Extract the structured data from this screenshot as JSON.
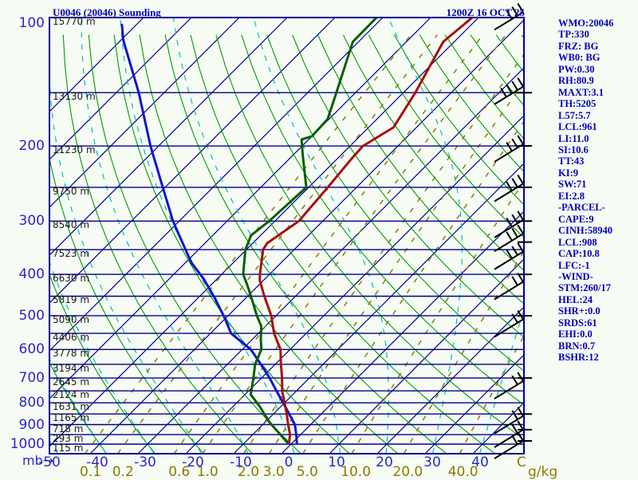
{
  "title": "U0046 (20046) Sounding",
  "datetime": "1200Z 16 OCT 25",
  "panel": {
    "lines": [
      "WMO:20046",
      "TP:330",
      "FRZ: BG",
      "WB0: BG",
      "PW:0.30",
      "RH:80.9",
      "MAXT:3.1",
      "TH:5205",
      "L57:5.7",
      "LCL:961",
      "LI:11.0",
      "SI:10.6",
      "TT:43",
      "KI:9",
      "SW:71",
      "EI:2.8",
      "-PARCEL-",
      "CAPE:9",
      "CINH:58940",
      "LCL:908",
      "CAP:10.8",
      "LFC:-1",
      "-WIND-",
      "STM:260/17",
      "HEL:24",
      "SHR+:0.0",
      "SRDS:61",
      "EHI:0.0",
      "BRN:0.7",
      "BSHR:12"
    ]
  },
  "axes": {
    "pressure_unit": "mb",
    "pressure_arrow": "→",
    "pressure_labels": [
      100,
      200,
      300,
      400,
      500,
      600,
      700,
      800,
      900,
      1000
    ],
    "temp_labels": [
      -50,
      -40,
      -30,
      -20,
      -10,
      0,
      10,
      20,
      30,
      40
    ],
    "temp_unit": "C",
    "mixing_labels": [
      "0.1",
      "0.2",
      "0.6",
      "1.0",
      "2.0",
      "3.0",
      "5.0",
      "10.0",
      "20.0",
      "40.0"
    ],
    "mixing_unit": "g/kg",
    "height_labels": [
      {
        "p": 100,
        "text": "15770 m"
      },
      {
        "p": 150,
        "text": "13130 m"
      },
      {
        "p": 200,
        "text": "11230 m"
      },
      {
        "p": 250,
        "text": "9750 m"
      },
      {
        "p": 300,
        "text": "8540 m"
      },
      {
        "p": 350,
        "text": "7523 m"
      },
      {
        "p": 400,
        "text": "6630 m"
      },
      {
        "p": 450,
        "text": "5819 m"
      },
      {
        "p": 500,
        "text": "5090 m"
      },
      {
        "p": 550,
        "text": "4406 m"
      },
      {
        "p": 600,
        "text": "3778 m"
      },
      {
        "p": 650,
        "text": "3194 m"
      },
      {
        "p": 700,
        "text": "2645 m"
      },
      {
        "p": 750,
        "text": "2124 m"
      },
      {
        "p": 800,
        "text": "1631 m"
      },
      {
        "p": 850,
        "text": "1165 m"
      },
      {
        "p": 900,
        "text": "718 m"
      },
      {
        "p": 950,
        "text": "293 m"
      },
      {
        "p": 1000,
        "text": "115 m"
      }
    ]
  },
  "chart_data": {
    "type": "skew-t log-p sounding",
    "pressure_range_mb": [
      100,
      1050
    ],
    "temp_scale_c_at_bottom": [
      -50,
      48
    ],
    "skew": "45deg",
    "isobars_mb": [
      100,
      150,
      200,
      250,
      300,
      350,
      400,
      450,
      500,
      550,
      600,
      650,
      700,
      750,
      800,
      850,
      900,
      950,
      1000
    ],
    "isotherms_c": [
      -120,
      -110,
      -100,
      -90,
      -80,
      -70,
      -60,
      -50,
      -40,
      -30,
      -20,
      -10,
      0,
      10,
      20,
      30,
      40
    ],
    "dry_adiabats_c": [
      -40,
      -30,
      -20,
      -10,
      0,
      10,
      20,
      30,
      40,
      50,
      60,
      70,
      80,
      90,
      100,
      110,
      120,
      130,
      140,
      150,
      160,
      170,
      180
    ],
    "moist_adiabats_c": [
      -60,
      -50,
      -40,
      -30,
      -20,
      -10,
      0,
      10,
      20,
      30,
      40
    ],
    "mixing_ratio_g_kg": [
      0.1,
      0.2,
      0.6,
      1,
      2,
      3,
      5,
      10,
      20,
      40
    ],
    "temperature_trace_p_t": [
      [
        100,
        -51.3
      ],
      [
        114,
        -52.3
      ],
      [
        150,
        -47.5
      ],
      [
        181,
        -44.8
      ],
      [
        200,
        -47.3
      ],
      [
        215,
        -47.0
      ],
      [
        250,
        -46.0
      ],
      [
        300,
        -45.0
      ],
      [
        338,
        -47.0
      ],
      [
        350,
        -46.5
      ],
      [
        400,
        -42.0
      ],
      [
        413,
        -40.8
      ],
      [
        450,
        -36.5
      ],
      [
        500,
        -31.0
      ],
      [
        550,
        -26.7
      ],
      [
        600,
        -22.0
      ],
      [
        650,
        -18.8
      ],
      [
        700,
        -15.7
      ],
      [
        750,
        -13.0
      ],
      [
        800,
        -10.0
      ],
      [
        850,
        -7.2
      ],
      [
        900,
        -4.7
      ],
      [
        950,
        -2.2
      ],
      [
        990,
        -0.8
      ]
    ],
    "dewpoint_trace_p_t": [
      [
        100,
        -71.3
      ],
      [
        114,
        -71.2
      ],
      [
        150,
        -64.0
      ],
      [
        173,
        -60.3
      ],
      [
        190,
        -60.0
      ],
      [
        193,
        -61.5
      ],
      [
        210,
        -58.0
      ],
      [
        250,
        -50.5
      ],
      [
        300,
        -51.2
      ],
      [
        324,
        -52.0
      ],
      [
        350,
        -50.2
      ],
      [
        400,
        -45.5
      ],
      [
        423,
        -42.5
      ],
      [
        450,
        -39.3
      ],
      [
        500,
        -34.0
      ],
      [
        530,
        -30.8
      ],
      [
        567,
        -28.3
      ],
      [
        600,
        -26.0
      ],
      [
        650,
        -24.2
      ],
      [
        700,
        -21.7
      ],
      [
        765,
        -18.8
      ],
      [
        815,
        -14.5
      ],
      [
        890,
        -9.0
      ],
      [
        990,
        -1.2
      ]
    ],
    "parcel_trace_p_t": [
      [
        104,
        -123.0
      ],
      [
        113,
        -119.5
      ],
      [
        150,
        -105.3
      ],
      [
        200,
        -91.7
      ],
      [
        250,
        -80.5
      ],
      [
        300,
        -71.3
      ],
      [
        350,
        -62.7
      ],
      [
        376,
        -58.7
      ],
      [
        410,
        -52.8
      ],
      [
        456,
        -46.3
      ],
      [
        510,
        -39.8
      ],
      [
        550,
        -35.7
      ],
      [
        600,
        -28.2
      ],
      [
        650,
        -23.0
      ],
      [
        700,
        -18.3
      ],
      [
        750,
        -14.2
      ],
      [
        800,
        -10.3
      ],
      [
        850,
        -6.7
      ],
      [
        900,
        -3.3
      ],
      [
        950,
        -0.9
      ],
      [
        995,
        1.0
      ]
    ],
    "wind_barbs": [
      {
        "p": 101,
        "ticks": 3
      },
      {
        "p": 151,
        "ticks": 4
      },
      {
        "p": 206,
        "ticks": 3
      },
      {
        "p": 255,
        "ticks": 3
      },
      {
        "p": 310,
        "ticks": 3
      },
      {
        "p": 334,
        "ticks": 3
      },
      {
        "p": 368,
        "ticks": 3
      },
      {
        "p": 433,
        "ticks": 2
      },
      {
        "p": 530,
        "ticks": 2
      },
      {
        "p": 740,
        "ticks": 2
      },
      {
        "p": 893,
        "ticks": 2
      },
      {
        "p": 962,
        "ticks": 2
      },
      {
        "p": 1022,
        "ticks": 2
      }
    ],
    "edge_tick_levels_mb": [
      150,
      200,
      250,
      300,
      336,
      400,
      500,
      700,
      850,
      925,
      983
    ],
    "legend": {
      "red": "temperature",
      "dark_green": "dewpoint",
      "blue": "parcel ascent"
    }
  },
  "colors": {
    "background": "#f6fbf4",
    "frame": "#00008b",
    "isotherm": "#00008b",
    "isobar": "#00008b",
    "dry_adiabat": "#009a00",
    "moist_adiabat": "#00bcbc",
    "mixing_ratio": "#8a7a00",
    "temperature_trace": "#a80f0f",
    "dewpoint_trace": "#0b5c0b",
    "parcel_trace": "#1414cc",
    "wind_barb": "#000000",
    "label_blue": "#2828c8",
    "text_blue": "#0000b4"
  }
}
